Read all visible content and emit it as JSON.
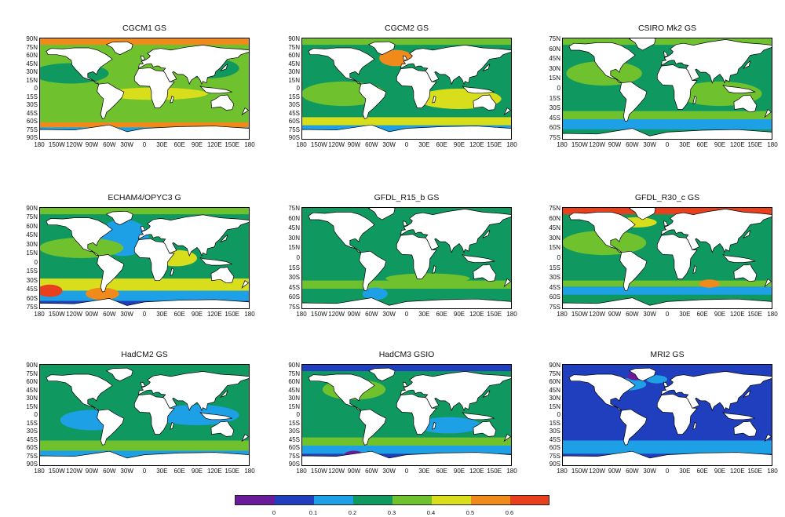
{
  "panels": [
    {
      "title": "CGCM1 GS",
      "lat_labels": [
        "90N",
        "75N",
        "60N",
        "45N",
        "30N",
        "15N",
        "0",
        "15S",
        "30S",
        "45S",
        "60S",
        "75S",
        "90S"
      ]
    },
    {
      "title": "CGCM2 GS",
      "lat_labels": [
        "90N",
        "75N",
        "60N",
        "45N",
        "30N",
        "15N",
        "0",
        "15S",
        "30S",
        "45S",
        "60S",
        "75S",
        "90S"
      ]
    },
    {
      "title": "CSIRO Mk2 GS",
      "lat_labels": [
        "75N",
        "60N",
        "45N",
        "30N",
        "15N",
        "0",
        "15S",
        "30S",
        "45S",
        "60S",
        "75S"
      ]
    },
    {
      "title": "ECHAM4/OPYC3 G",
      "lat_labels": [
        "90N",
        "75N",
        "60N",
        "45N",
        "30N",
        "15N",
        "0",
        "15S",
        "30S",
        "45S",
        "60S",
        "75S"
      ]
    },
    {
      "title": "GFDL_R15_b GS",
      "lat_labels": [
        "75N",
        "60N",
        "45N",
        "30N",
        "15N",
        "0",
        "15S",
        "30S",
        "45S",
        "60S",
        "75S"
      ]
    },
    {
      "title": "GFDL_R30_c GS",
      "lat_labels": [
        "75N",
        "60N",
        "45N",
        "30N",
        "15N",
        "0",
        "15S",
        "30S",
        "45S",
        "60S",
        "75S"
      ]
    },
    {
      "title": "HadCM2 GS",
      "lat_labels": [
        "90N",
        "75N",
        "60N",
        "45N",
        "30N",
        "15N",
        "0",
        "15S",
        "30S",
        "45S",
        "60S",
        "75S",
        "90S"
      ]
    },
    {
      "title": "HadCM3 GSIO",
      "lat_labels": [
        "90N",
        "75N",
        "60N",
        "45N",
        "30N",
        "15N",
        "0",
        "15S",
        "30S",
        "45S",
        "60S",
        "75S",
        "90S"
      ]
    },
    {
      "title": "MRI2 GS",
      "lat_labels": [
        "90N",
        "75N",
        "60N",
        "45N",
        "30N",
        "15N",
        "0",
        "15S",
        "30S",
        "45S",
        "60S",
        "75S",
        "90S"
      ]
    }
  ],
  "lon_labels": [
    "180",
    "150W",
    "120W",
    "90W",
    "60W",
    "30W",
    "0",
    "30E",
    "60E",
    "90E",
    "120E",
    "150E",
    "180"
  ],
  "colorbar": {
    "tick_labels": [
      "0",
      "0.1",
      "0.2",
      "0.3",
      "0.4",
      "0.5",
      "0.6"
    ],
    "colors": [
      "#6a1b9a",
      "#1f3fbf",
      "#1ea0e6",
      "#0f9960",
      "#6fc12e",
      "#d8dd1c",
      "#f08a1a",
      "#e8401c"
    ]
  }
}
